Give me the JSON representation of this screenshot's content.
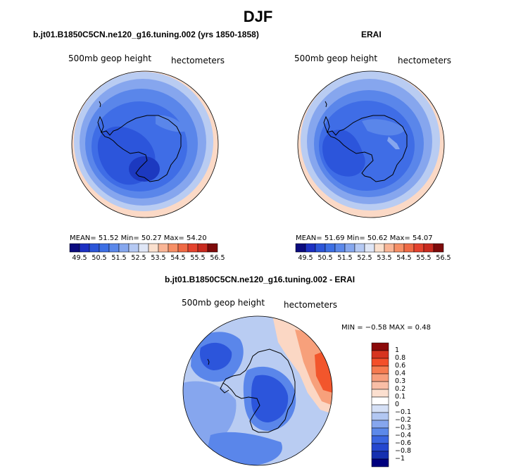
{
  "main_title": "DJF",
  "panel_left": {
    "title": "b.jt01.B1850C5CN.ne120_g16.tuning.002 (yrs 1850-1858)",
    "variable": "500mb geop height",
    "units": "hectometers",
    "stats": "MEAN=  51.52  Min=  50.27  Max=  54.20"
  },
  "panel_right": {
    "title": "ERAI",
    "variable": "500mb geop height",
    "units": "hectometers",
    "stats": "MEAN=  51.69  Min=  50.62  Max=  54.07"
  },
  "panel_diff": {
    "title": "b.jt01.B1850C5CN.ne120_g16.tuning.002 - ERAI",
    "variable": "500mb geop height",
    "units": "hectometers",
    "stats": "MIN =  −0.58  MAX =   0.48"
  },
  "colorbar_horizontal": {
    "colors": [
      "#0b0b7e",
      "#1c30c2",
      "#2c55d8",
      "#3d6fe4",
      "#5b88ea",
      "#86a7ee",
      "#b5c9f3",
      "#dfe6f6",
      "#fae0ce",
      "#f9b596",
      "#f68f66",
      "#ef6a45",
      "#e4432e",
      "#c82a1f",
      "#7d0a0a"
    ],
    "labels": [
      "49.5",
      "50.5",
      "51.5",
      "52.5",
      "53.5",
      "54.5",
      "55.5",
      "56.5"
    ]
  },
  "colorbar_vertical": {
    "colors": [
      "#8b0a0a",
      "#d6341f",
      "#f34f2a",
      "#f67b50",
      "#f79e7c",
      "#f9bea6",
      "#fbdfcf",
      "#ffffff",
      "#d5e0f6",
      "#b2c7f2",
      "#86a6ee",
      "#5c89ea",
      "#3a66e1",
      "#2447cf",
      "#1530b0",
      "#00007f"
    ],
    "labels": [
      "1",
      "0.8",
      "0.6",
      "0.4",
      "0.3",
      "0.2",
      "0.1",
      "0",
      "−0.1",
      "−0.2",
      "−0.3",
      "−0.4",
      "−0.6",
      "−0.8",
      "−1"
    ]
  },
  "map_colors": {
    "outer_light": "#fbd9c6",
    "ring_pale": "#b9ccf2",
    "ring_light": "#86a6ee",
    "ring_mid": "#5a86ea",
    "ring_blue": "#3f6de6",
    "core_blue": "#2c55db",
    "deep_blue": "#1c39c0",
    "coast": "#000000",
    "diff_red": "#f2562c",
    "diff_orange": "#f7a07b",
    "diff_pink": "#fbd7c4"
  }
}
